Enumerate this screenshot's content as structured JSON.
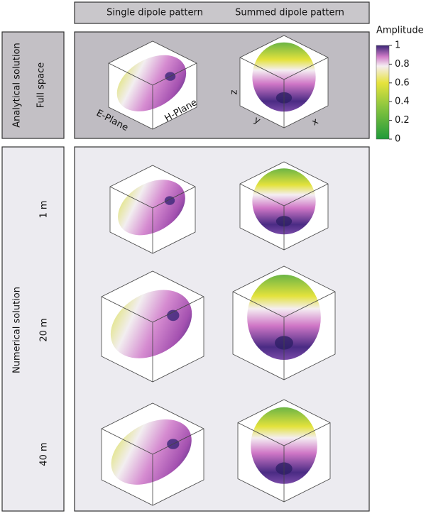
{
  "header": {
    "columns": [
      "Single dipole pattern",
      "Summed dipole pattern"
    ]
  },
  "rows": [
    {
      "group": "Analytical solution",
      "labels": [
        "Full space"
      ]
    },
    {
      "group": "Numerical solution",
      "labels": [
        "1 m",
        "20 m",
        "40 m"
      ]
    }
  ],
  "axis_labels": {
    "e_plane": "E-Plane",
    "h_plane": "H-Plane",
    "z": "z",
    "y": "y",
    "x": "x"
  },
  "colorbar": {
    "title": "Amplitude",
    "ticks": [
      0,
      0.2,
      0.4,
      0.6,
      0.8,
      1
    ]
  }
}
